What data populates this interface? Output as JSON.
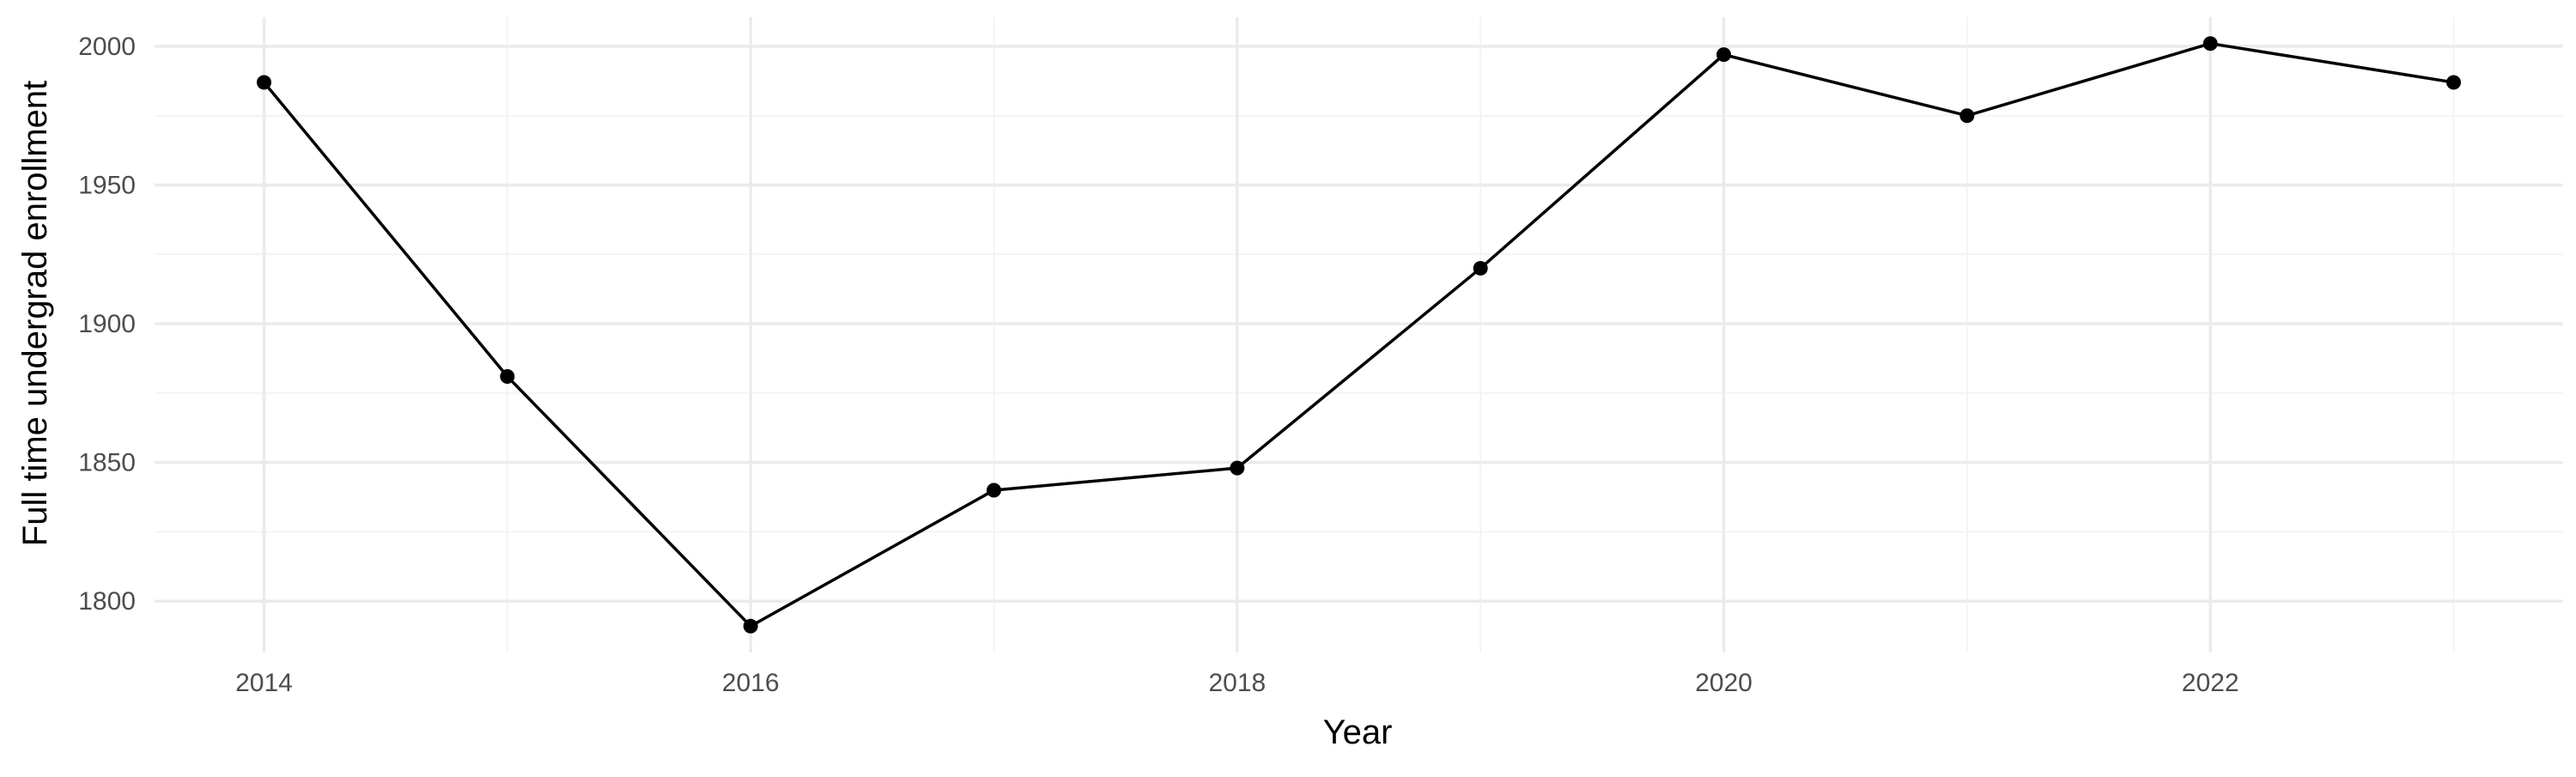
{
  "chart_data": {
    "type": "line",
    "title": "",
    "xlabel": "Year",
    "ylabel": "Full time undergrad enrollment",
    "x": [
      2014,
      2015,
      2016,
      2017,
      2018,
      2019,
      2020,
      2021,
      2022,
      2023
    ],
    "series": [
      {
        "values": [
          1987,
          1881,
          1791,
          1840,
          1848,
          1920,
          1997,
          1975,
          2001,
          1987
        ]
      }
    ],
    "xlim": [
      2013.55,
      2023.45
    ],
    "ylim": [
      1781.5,
      2010.5
    ],
    "x_ticks": [
      "2014",
      "2016",
      "2018",
      "2020",
      "2022"
    ],
    "y_ticks": [
      "1800",
      "1850",
      "1900",
      "1950",
      "2000"
    ],
    "grid": true,
    "legend": "none",
    "colors": {
      "line": "#000000",
      "points": "#000000",
      "grid_major": "#ebebeb",
      "grid_minor": "#f4f4f4",
      "tick_text": "#4d4d4d",
      "background": "#ffffff"
    }
  }
}
